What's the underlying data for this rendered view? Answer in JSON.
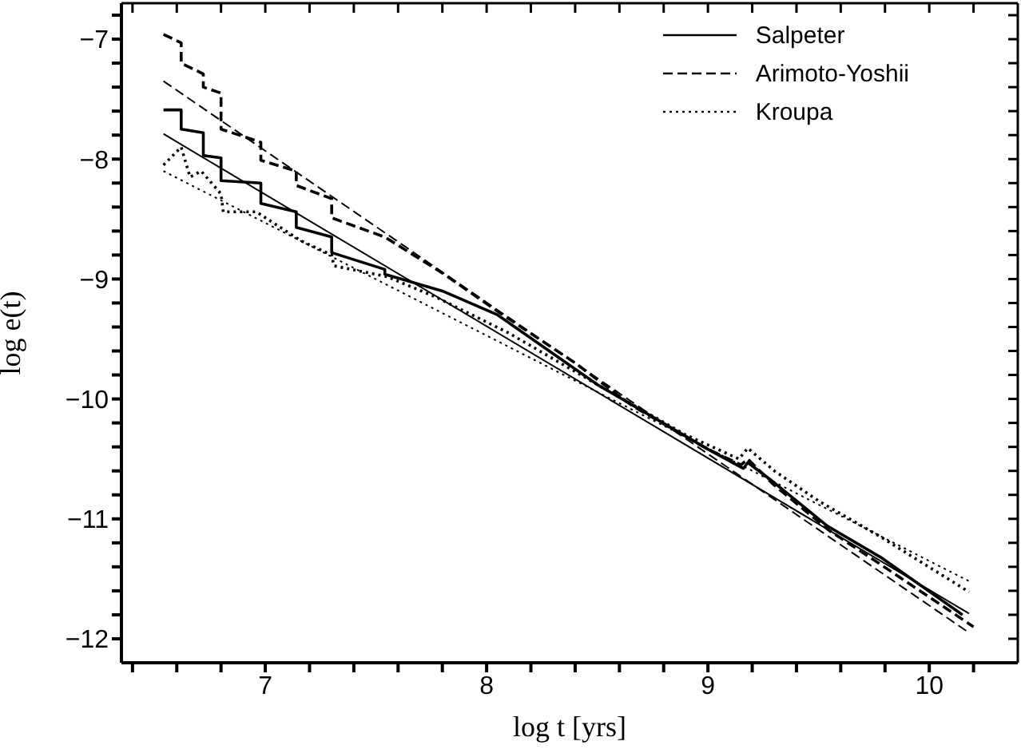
{
  "chart_data": {
    "type": "line",
    "xlabel": "log t [yrs]",
    "ylabel": "log e(t)",
    "xlim": [
      6.35,
      10.4
    ],
    "ylim": [
      -12.2,
      -6.7
    ],
    "xticks": [
      {
        "value": 6.4,
        "label": null
      },
      {
        "value": 6.6,
        "label": null
      },
      {
        "value": 6.8,
        "label": null
      },
      7,
      {
        "value": 7.2,
        "label": null
      },
      {
        "value": 7.4,
        "label": null
      },
      {
        "value": 7.6,
        "label": null
      },
      {
        "value": 7.8,
        "label": null
      },
      8,
      {
        "value": 8.2,
        "label": null
      },
      {
        "value": 8.4,
        "label": null
      },
      {
        "value": 8.6,
        "label": null
      },
      {
        "value": 8.8,
        "label": null
      },
      9,
      {
        "value": 9.2,
        "label": null
      },
      {
        "value": 9.4,
        "label": null
      },
      {
        "value": 9.6,
        "label": null
      },
      {
        "value": 9.8,
        "label": null
      },
      10,
      {
        "value": 10.2,
        "label": null
      }
    ],
    "yticks": [
      -12,
      {
        "value": -11.8,
        "label": null
      },
      {
        "value": -11.6,
        "label": null
      },
      {
        "value": -11.4,
        "label": null
      },
      {
        "value": -11.2,
        "label": null
      },
      -11,
      {
        "value": -10.8,
        "label": null
      },
      {
        "value": -10.6,
        "label": null
      },
      {
        "value": -10.4,
        "label": null
      },
      {
        "value": -10.2,
        "label": null
      },
      -10,
      {
        "value": -9.8,
        "label": null
      },
      {
        "value": -9.6,
        "label": null
      },
      {
        "value": -9.4,
        "label": null
      },
      {
        "value": -9.2,
        "label": null
      },
      -9,
      {
        "value": -8.8,
        "label": null
      },
      {
        "value": -8.6,
        "label": null
      },
      {
        "value": -8.4,
        "label": null
      },
      {
        "value": -8.2,
        "label": null
      },
      -8,
      {
        "value": -7.8,
        "label": null
      },
      {
        "value": -7.6,
        "label": null
      },
      {
        "value": -7.4,
        "label": null
      },
      {
        "value": -7.2,
        "label": null
      },
      -7,
      {
        "value": -6.8,
        "label": null
      }
    ],
    "legend": "top right",
    "marker": "none",
    "series": [
      {
        "name": "Salpeter",
        "color": "#000000",
        "line_style": "solid",
        "x": [
          6.54,
          6.62,
          6.62,
          6.72,
          6.72,
          6.8,
          6.8,
          6.98,
          6.98,
          7.14,
          7.14,
          7.3,
          7.3,
          7.54,
          7.54,
          7.8,
          8.05,
          8.5,
          9.0,
          9.16,
          9.18,
          9.28,
          9.54,
          9.78,
          10.15
        ],
        "values": [
          -7.59,
          -7.59,
          -7.75,
          -7.78,
          -7.97,
          -7.99,
          -8.18,
          -8.2,
          -8.37,
          -8.44,
          -8.57,
          -8.65,
          -8.78,
          -8.92,
          -8.96,
          -9.1,
          -9.3,
          -9.88,
          -10.42,
          -10.58,
          -10.53,
          -10.67,
          -11.06,
          -11.32,
          -11.8
        ]
      },
      {
        "color": "#000000",
        "line_style": "solid",
        "x": [
          6.54,
          10.18
        ],
        "values": [
          -7.79,
          -11.79
        ]
      },
      {
        "name": "Arimoto-Yoshii",
        "color": "#000000",
        "line_style": "dashed",
        "x": [
          6.54,
          6.62,
          6.62,
          6.72,
          6.72,
          6.8,
          6.8,
          6.98,
          6.98,
          7.14,
          7.14,
          7.3,
          7.3,
          7.54,
          7.8,
          8.05,
          8.4,
          8.66,
          9.0,
          9.15,
          9.18,
          9.3,
          9.55,
          9.78,
          10.2
        ],
        "values": [
          -6.96,
          -7.03,
          -7.2,
          -7.29,
          -7.4,
          -7.45,
          -7.75,
          -7.86,
          -8.01,
          -8.1,
          -8.22,
          -8.33,
          -8.49,
          -8.65,
          -8.95,
          -9.27,
          -9.7,
          -10.06,
          -10.42,
          -10.55,
          -10.5,
          -10.72,
          -11.1,
          -11.38,
          -11.9
        ]
      },
      {
        "color": "#000000",
        "line_style": "dashed",
        "x": [
          6.54,
          10.18
        ],
        "values": [
          -7.35,
          -11.95
        ]
      },
      {
        "name": "Kroupa",
        "color": "#000000",
        "line_style": "dotted",
        "x": [
          6.54,
          6.62,
          6.66,
          6.71,
          6.8,
          6.81,
          6.96,
          7.16,
          7.3,
          7.31,
          7.55,
          7.77,
          8.1,
          8.5,
          8.9,
          9.14,
          9.18,
          9.3,
          9.5,
          9.78,
          10.18
        ],
        "values": [
          -8.05,
          -7.9,
          -8.15,
          -8.1,
          -8.29,
          -8.44,
          -8.44,
          -8.68,
          -8.8,
          -8.89,
          -8.98,
          -9.15,
          -9.45,
          -9.88,
          -10.3,
          -10.5,
          -10.41,
          -10.6,
          -10.85,
          -11.15,
          -11.61
        ]
      },
      {
        "color": "#000000",
        "line_style": "dotted",
        "x": [
          6.54,
          10.18
        ],
        "values": [
          -8.1,
          -11.52
        ]
      }
    ]
  }
}
